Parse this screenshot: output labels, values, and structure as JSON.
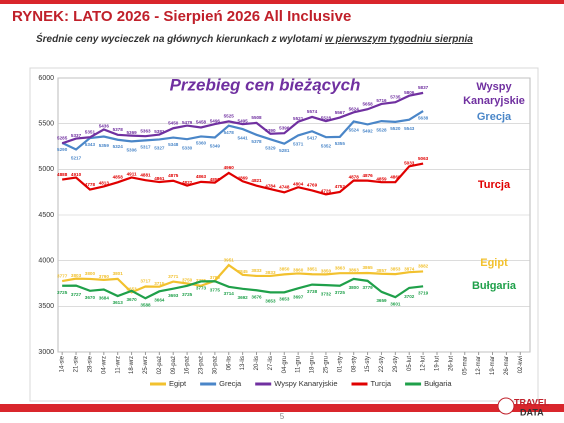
{
  "header": {
    "title": "RYNEK: LATO 2026 - Sierpień 2026 All Inclusive",
    "subtitle": "Średnie ceny wycieczek na głównych kierunkach  z wylotami",
    "subtitle_underlined": "w pierwszym tygodniu sierpnia"
  },
  "page_number": "5",
  "logo": {
    "line1": "TRAVEL",
    "line2": "DATA"
  },
  "chart_data": {
    "type": "line",
    "title": "Przebieg cen bieżących",
    "categories": [
      "14-sie",
      "21-sie",
      "28-sie",
      "04-wrz",
      "11-wrz",
      "18-wrz",
      "25-wrz",
      "02-paź",
      "09-paź",
      "16-paź",
      "23-paź",
      "30-paź",
      "06-lis",
      "13-lis",
      "20-lis",
      "27-lis",
      "04-gru",
      "11-gru",
      "18-gru",
      "25-gru",
      "01-sty",
      "08-sty",
      "15-sty",
      "22-sty",
      "29-sty",
      "05-lut",
      "12-lut",
      "19-lut",
      "26-lut",
      "05-mar",
      "12-mar",
      "19-mar",
      "26-mar",
      "02-kwi"
    ],
    "ylim": [
      3000,
      6000
    ],
    "yticks": [
      3000,
      3500,
      4000,
      4500,
      5000,
      5500,
      6000
    ],
    "grid": true,
    "legend": "bottom",
    "series": [
      {
        "name": "Egipt",
        "color": "#f2c12e",
        "values": [
          3777,
          3803,
          3800,
          3790,
          3801,
          3653,
          3717,
          3715,
          3771,
          3750,
          3725,
          3780,
          3951,
          3845,
          3833,
          3833,
          3850,
          3860,
          3851,
          3850,
          3863,
          3863,
          3865,
          3857,
          3853,
          3874,
          3882,
          null,
          null,
          null,
          null,
          null,
          null,
          null
        ]
      },
      {
        "name": "Grecja",
        "color": "#4a86c8",
        "values": [
          5290,
          5217,
          5343,
          5359,
          5324,
          5306,
          5317,
          5327,
          5348,
          5330,
          5360,
          5349,
          5478,
          5441,
          5378,
          5329,
          5281,
          5371,
          5417,
          5352,
          5355,
          5524,
          5492,
          5528,
          5520,
          5543,
          5638,
          null,
          null,
          null,
          null,
          null,
          null,
          null
        ]
      },
      {
        "name": "Wyspy Kanaryjskie",
        "color": "#7030a0",
        "values": [
          5285,
          5337,
          5351,
          5436,
          5378,
          5369,
          5363,
          5381,
          5450,
          5479,
          5458,
          5496,
          5525,
          5495,
          5508,
          5390,
          5396,
          5521,
          5574,
          5528,
          5567,
          5624,
          5658,
          5716,
          5735,
          5806,
          5837,
          null,
          null,
          null,
          null,
          null,
          null,
          null
        ]
      },
      {
        "name": "Turcja",
        "color": "#e00000",
        "values": [
          4888,
          4910,
          4778,
          4813,
          4858,
          4911,
          4881,
          4861,
          4875,
          4822,
          4863,
          4855,
          4960,
          4869,
          4821,
          4784,
          4748,
          4804,
          4769,
          4726,
          4752,
          4878,
          4876,
          4859,
          4860,
          5033,
          5063,
          null,
          null,
          null,
          null,
          null,
          null,
          null
        ]
      },
      {
        "name": "Bułgaria",
        "color": "#1fa04a",
        "values": [
          3725,
          3727,
          3670,
          3684,
          3613,
          3670,
          3588,
          3664,
          3693,
          3725,
          3773,
          3775,
          3714,
          3692,
          3676,
          3653,
          3653,
          3697,
          3738,
          3732,
          3725,
          3800,
          3779,
          3659,
          3601,
          3702,
          3719,
          null,
          null,
          null,
          null,
          null,
          null,
          null
        ]
      }
    ]
  }
}
